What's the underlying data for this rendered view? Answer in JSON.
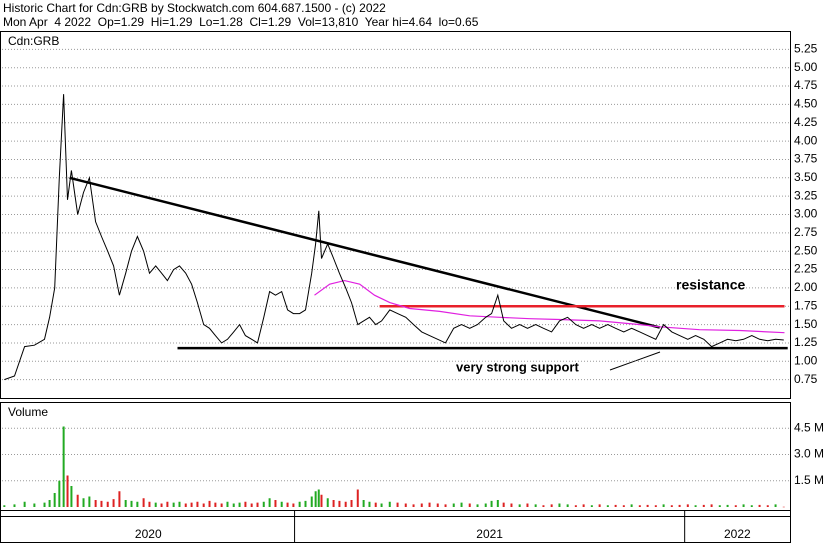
{
  "chart_data": [
    {
      "type": "line",
      "title": "Historic Chart for Cdn:GRB by Stockwatch.com 604.687.1500 - (c) 2022",
      "subtitle": "Mon Apr  4 2022  Op=1.29  Hi=1.29  Lo=1.28  Cl=1.29  Vol=13,810  Year hi=4.64  lo=0.65",
      "panel_label": "Cdn:GRB",
      "color": "#000000",
      "xlim": [
        2020.25,
        2022.27
      ],
      "ylim": [
        0.5,
        5.5
      ],
      "yticks": [
        0.75,
        {
          "value": 1,
          "label": "1.00"
        },
        1.25,
        {
          "value": 1.5,
          "label": "1.50"
        },
        1.75,
        {
          "value": 2,
          "label": "2.00"
        },
        2.25,
        {
          "value": 2.5,
          "label": "2.50"
        },
        2.75,
        {
          "value": 3,
          "label": "3.00"
        },
        3.25,
        {
          "value": 3.5,
          "label": "3.50"
        },
        3.75,
        {
          "value": 4,
          "label": "4.00"
        },
        4.25,
        {
          "value": 4.5,
          "label": "4.50"
        },
        4.75,
        {
          "value": 5,
          "label": "5.00"
        },
        5.25
      ],
      "grid": true,
      "x": [
        2020.256,
        2020.282,
        2020.308,
        2020.333,
        2020.359,
        2020.372,
        2020.385,
        2020.397,
        2020.408,
        2020.418,
        2020.428,
        2020.444,
        2020.459,
        2020.474,
        2020.49,
        2020.505,
        2020.521,
        2020.536,
        2020.551,
        2020.567,
        2020.582,
        2020.597,
        2020.613,
        2020.628,
        2020.644,
        2020.659,
        2020.674,
        2020.69,
        2020.705,
        2020.721,
        2020.736,
        2020.751,
        2020.767,
        2020.782,
        2020.797,
        2020.813,
        2020.828,
        2020.844,
        2020.859,
        2020.874,
        2020.89,
        2020.905,
        2020.921,
        2020.936,
        2020.951,
        2020.967,
        2020.982,
        2020.997,
        2021.013,
        2021.028,
        2021.044,
        2021.054,
        2021.062,
        2021.069,
        2021.085,
        2021.1,
        2021.115,
        2021.131,
        2021.146,
        2021.162,
        2021.177,
        2021.192,
        2021.208,
        2021.223,
        2021.244,
        2021.264,
        2021.285,
        2021.305,
        2021.326,
        2021.346,
        2021.367,
        2021.387,
        2021.408,
        2021.428,
        2021.449,
        2021.469,
        2021.49,
        2021.505,
        2021.521,
        2021.536,
        2021.556,
        2021.577,
        2021.597,
        2021.618,
        2021.638,
        2021.659,
        2021.679,
        2021.7,
        2021.721,
        2021.741,
        2021.762,
        2021.782,
        2021.803,
        2021.823,
        2021.844,
        2021.864,
        2021.885,
        2021.905,
        2021.926,
        2021.946,
        2021.967,
        2021.987,
        2022.008,
        2022.028,
        2022.049,
        2022.069,
        2022.09,
        2022.11,
        2022.131,
        2022.151,
        2022.172,
        2022.192,
        2022.213,
        2022.233,
        2022.254
      ],
      "values": [
        0.75,
        0.8,
        1.2,
        1.22,
        1.3,
        1.6,
        2.0,
        3.5,
        4.64,
        3.2,
        3.6,
        3.0,
        3.3,
        3.5,
        2.9,
        2.7,
        2.5,
        2.3,
        1.9,
        2.2,
        2.5,
        2.7,
        2.5,
        2.2,
        2.3,
        2.2,
        2.1,
        2.25,
        2.3,
        2.2,
        2.05,
        1.8,
        1.5,
        1.45,
        1.35,
        1.25,
        1.3,
        1.4,
        1.5,
        1.35,
        1.3,
        1.25,
        1.6,
        1.95,
        1.9,
        1.95,
        1.7,
        1.65,
        1.65,
        1.7,
        2.2,
        2.6,
        3.05,
        2.4,
        2.6,
        2.4,
        2.2,
        2.0,
        1.8,
        1.5,
        1.55,
        1.6,
        1.5,
        1.55,
        1.7,
        1.65,
        1.6,
        1.5,
        1.4,
        1.35,
        1.3,
        1.25,
        1.45,
        1.5,
        1.45,
        1.5,
        1.6,
        1.65,
        1.9,
        1.55,
        1.45,
        1.5,
        1.45,
        1.5,
        1.45,
        1.4,
        1.55,
        1.6,
        1.5,
        1.45,
        1.5,
        1.45,
        1.5,
        1.45,
        1.4,
        1.45,
        1.4,
        1.35,
        1.3,
        1.5,
        1.4,
        1.35,
        1.3,
        1.35,
        1.3,
        1.2,
        1.25,
        1.3,
        1.28,
        1.3,
        1.35,
        1.3,
        1.28,
        1.3,
        1.29
      ],
      "lines": [
        {
          "x": [
            2020.423,
            2021.936
          ],
          "y": [
            3.5,
            1.46
          ],
          "color": "#000000"
        },
        {
          "x": [
            2020.7,
            2022.264
          ],
          "y": [
            1.18,
            1.18
          ],
          "color": "#000000"
        },
        {
          "x": [
            2021.218,
            2022.256
          ],
          "y": [
            1.75,
            1.75
          ],
          "color": "#e8202a"
        },
        {
          "x": [
            2021.051,
            2021.09,
            2021.128,
            2021.167,
            2021.205,
            2021.244,
            2021.295,
            2021.372,
            2021.449,
            2021.526,
            2021.603,
            2021.679,
            2021.782,
            2021.885,
            2021.936,
            2022.038,
            2022.141,
            2022.256
          ],
          "y": [
            1.9,
            2.05,
            2.1,
            2.05,
            1.9,
            1.8,
            1.72,
            1.68,
            1.62,
            1.6,
            1.58,
            1.57,
            1.55,
            1.5,
            1.47,
            1.43,
            1.42,
            1.39
          ],
          "color": "#e020e0"
        }
      ],
      "annotations": [
        {
          "text": "resistance",
          "color": "#e8202a"
        },
        {
          "text": "very strong support",
          "color": "#000000"
        }
      ]
    },
    {
      "type": "bar",
      "panel_label": "Volume",
      "up_color": "#22aa22",
      "down_color": "#dd2222",
      "xlim": [
        2020.25,
        2022.27
      ],
      "ylim": [
        0,
        6000000
      ],
      "yticks": [
        {
          "value": 1500000,
          "label": "1.5 M"
        },
        {
          "value": 3000000,
          "label": "3.0 M"
        },
        {
          "value": 4500000,
          "label": "4.5 M"
        }
      ],
      "x_periods": [
        "2020",
        "2021",
        "2022"
      ],
      "x": [
        2020.256,
        2020.282,
        2020.308,
        2020.333,
        2020.359,
        2020.372,
        2020.385,
        2020.397,
        2020.408,
        2020.418,
        2020.428,
        2020.444,
        2020.459,
        2020.474,
        2020.49,
        2020.505,
        2020.521,
        2020.536,
        2020.551,
        2020.567,
        2020.582,
        2020.597,
        2020.613,
        2020.628,
        2020.644,
        2020.659,
        2020.674,
        2020.69,
        2020.705,
        2020.721,
        2020.736,
        2020.751,
        2020.767,
        2020.782,
        2020.797,
        2020.813,
        2020.828,
        2020.844,
        2020.859,
        2020.874,
        2020.89,
        2020.905,
        2020.921,
        2020.936,
        2020.951,
        2020.967,
        2020.982,
        2020.997,
        2021.013,
        2021.028,
        2021.044,
        2021.054,
        2021.062,
        2021.069,
        2021.085,
        2021.1,
        2021.115,
        2021.131,
        2021.146,
        2021.162,
        2021.177,
        2021.192,
        2021.208,
        2021.223,
        2021.244,
        2021.264,
        2021.285,
        2021.305,
        2021.326,
        2021.346,
        2021.367,
        2021.387,
        2021.408,
        2021.428,
        2021.449,
        2021.469,
        2021.49,
        2021.505,
        2021.521,
        2021.536,
        2021.556,
        2021.577,
        2021.597,
        2021.618,
        2021.638,
        2021.659,
        2021.679,
        2021.7,
        2021.721,
        2021.741,
        2021.762,
        2021.782,
        2021.803,
        2021.823,
        2021.844,
        2021.864,
        2021.885,
        2021.905,
        2021.926,
        2021.946,
        2021.967,
        2021.987,
        2022.008,
        2022.028,
        2022.049,
        2022.069,
        2022.09,
        2022.11,
        2022.131,
        2022.151,
        2022.172,
        2022.192,
        2022.213,
        2022.233,
        2022.254
      ],
      "values": [
        100000,
        150000,
        300000,
        200000,
        250000,
        400000,
        800000,
        1500000,
        4600000,
        1800000,
        1200000,
        700000,
        500000,
        600000,
        400000,
        350000,
        300000,
        450000,
        900000,
        400000,
        350000,
        300000,
        500000,
        300000,
        250000,
        200000,
        300000,
        250000,
        300000,
        200000,
        250000,
        300000,
        200000,
        350000,
        250000,
        200000,
        300000,
        200000,
        250000,
        300000,
        200000,
        250000,
        300000,
        500000,
        400000,
        300000,
        250000,
        200000,
        300000,
        350000,
        600000,
        900000,
        1000000,
        700000,
        500000,
        400000,
        350000,
        300000,
        400000,
        1000000,
        400000,
        300000,
        250000,
        200000,
        300000,
        250000,
        200000,
        150000,
        200000,
        250000,
        200000,
        150000,
        200000,
        250000,
        200000,
        150000,
        200000,
        350000,
        400000,
        250000,
        200000,
        150000,
        200000,
        150000,
        100000,
        150000,
        200000,
        150000,
        100000,
        150000,
        100000,
        150000,
        100000,
        120000,
        100000,
        150000,
        100000,
        120000,
        100000,
        150000,
        100000,
        120000,
        150000,
        100000,
        120000,
        150000,
        100000,
        120000,
        100000,
        150000,
        100000,
        120000,
        100000,
        150000,
        13810
      ]
    }
  ]
}
